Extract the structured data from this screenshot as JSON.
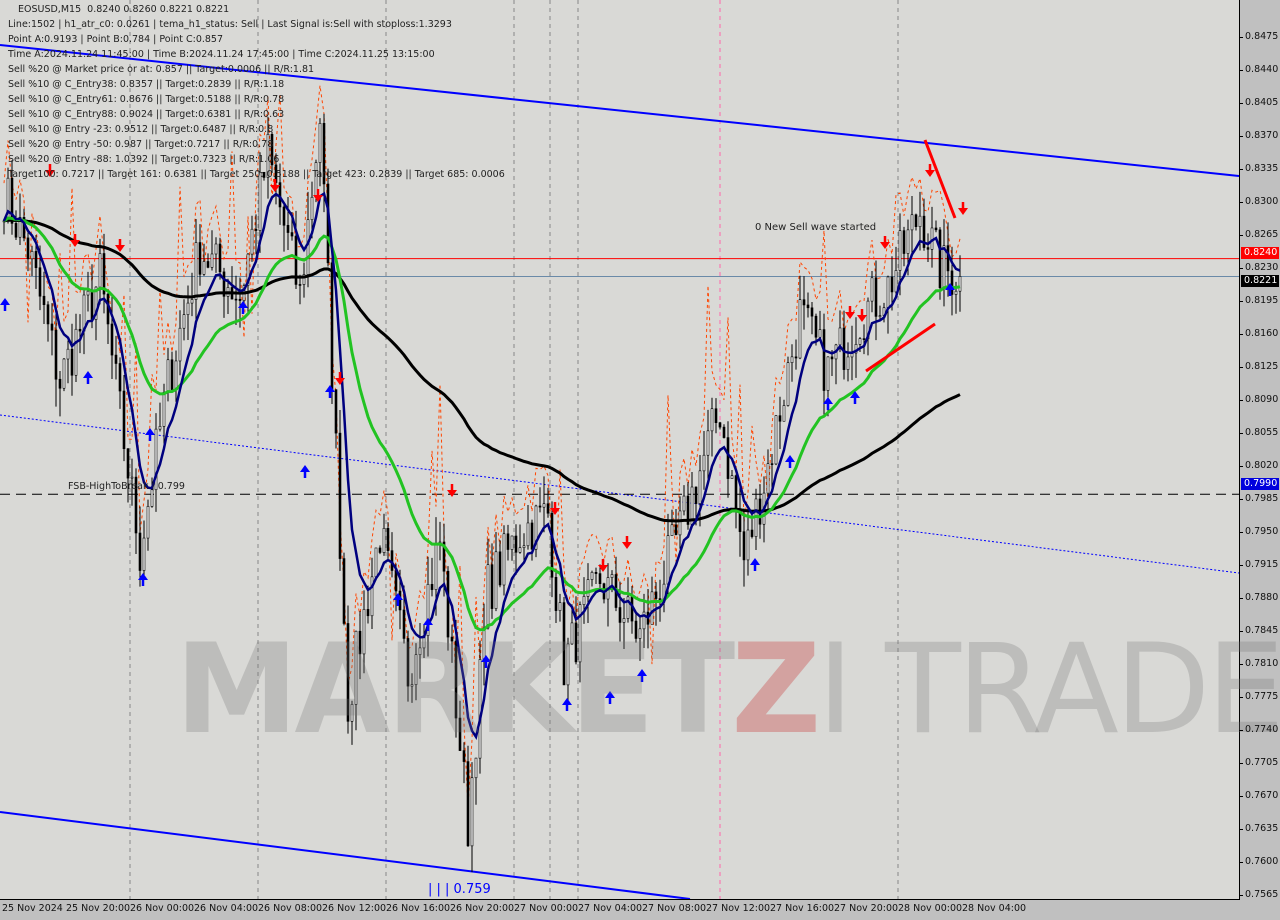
{
  "chart_data": {
    "type": "candlestick",
    "symbol": "EOSUSD,M15",
    "ohlc_header": "0.8240 0.8260 0.8221 0.8221",
    "info_lines": [
      "Line:1502 | h1_atr_c0: 0.0261 | tema_h1_status: Sell | Last Signal is:Sell with stoploss:1.3293",
      "Point A:0.9193 | Point B:0.784 | Point C:0.857",
      "Time A:2024.11.24 11:45:00 | Time B:2024.11.24 17:45:00 | Time C:2024.11.25 13:15:00",
      "Sell %20 @ Market price or at: 0.857 || Target:0.0006 || R/R:1.81",
      "Sell %10 @ C_Entry38: 0.8357 || Target:0.2839 || R/R:1.18",
      "Sell %10 @ C_Entry61: 0.8676 || Target:0.5188 || R/R:0.78",
      "Sell %10 @ C_Entry88: 0.9024 || Target:0.6381 || R/R:0.63",
      "Sell %10 @ Entry -23: 0.9512 || Target:0.6487 || R/R:0.8",
      "Sell %20 @ Entry -50: 0.987 || Target:0.7217 || R/R:0.78",
      "Sell %20 @ Entry -88: 1.0392 || Target:0.7323 || R/R:1.06",
      "Target100: 0.7217 || Target 161: 0.6381 || Target 250: 0.5188 || Target 423: 0.2839 || Target 685: 0.0006"
    ],
    "y_ticks": [
      "0.8475",
      "0.8440",
      "0.8405",
      "0.8370",
      "0.8335",
      "0.8300",
      "0.8265",
      "0.8230",
      "0.8195",
      "0.8160",
      "0.8125",
      "0.8090",
      "0.8055",
      "0.8020",
      "0.7985",
      "0.7950",
      "0.7915",
      "0.7880",
      "0.7845",
      "0.7810",
      "0.7775",
      "0.7740",
      "0.7705",
      "0.7670",
      "0.7635",
      "0.7600",
      "0.7565"
    ],
    "ylim": [
      0.7565,
      0.8475
    ],
    "x_ticks": [
      "25 Nov 2024",
      "25 Nov 20:00",
      "26 Nov 00:00",
      "26 Nov 04:00",
      "26 Nov 08:00",
      "26 Nov 12:00",
      "26 Nov 16:00",
      "26 Nov 20:00",
      "27 Nov 00:00",
      "27 Nov 04:00",
      "27 Nov 08:00",
      "27 Nov 12:00",
      "27 Nov 16:00",
      "27 Nov 20:00",
      "28 Nov 00:00",
      "28 Nov 04:00"
    ],
    "price_path": [
      [
        0,
        0.831
      ],
      [
        6,
        0.825
      ],
      [
        14,
        0.811
      ],
      [
        24,
        0.822
      ],
      [
        34,
        0.793
      ],
      [
        41,
        0.811
      ],
      [
        49,
        0.825
      ],
      [
        59,
        0.82
      ],
      [
        66,
        0.835
      ],
      [
        74,
        0.82
      ],
      [
        79,
        0.839
      ],
      [
        86,
        0.777
      ],
      [
        94,
        0.795
      ],
      [
        101,
        0.78
      ],
      [
        109,
        0.794
      ],
      [
        116,
        0.764
      ],
      [
        121,
        0.789
      ],
      [
        129,
        0.795
      ],
      [
        136,
        0.797
      ],
      [
        140,
        0.781
      ],
      [
        149,
        0.79
      ],
      [
        159,
        0.784
      ],
      [
        169,
        0.795
      ],
      [
        179,
        0.808
      ],
      [
        185,
        0.792
      ],
      [
        191,
        0.802
      ],
      [
        199,
        0.818
      ],
      [
        206,
        0.812
      ],
      [
        214,
        0.818
      ],
      [
        221,
        0.821
      ],
      [
        229,
        0.829
      ],
      [
        234,
        0.823
      ],
      [
        239,
        0.8221
      ]
    ],
    "levels": {
      "red_line": "0.8240",
      "current": "0.8221",
      "fsb": "0.7990"
    },
    "annotations": {
      "fsb_label": "FSB-HighToBreak | 0.799",
      "wave": "0 New Sell wave started",
      "low_label": "| | | 0.759"
    },
    "watermark": "MARKETZITRADE",
    "colors": {
      "bg": "#d9d9d6",
      "fast_ma": "#00007f",
      "mid_ma": "#22c322",
      "slow_ma": "#000000",
      "channel": "#0000ff",
      "red": "#ff0000",
      "orange": "#ff4500"
    }
  }
}
